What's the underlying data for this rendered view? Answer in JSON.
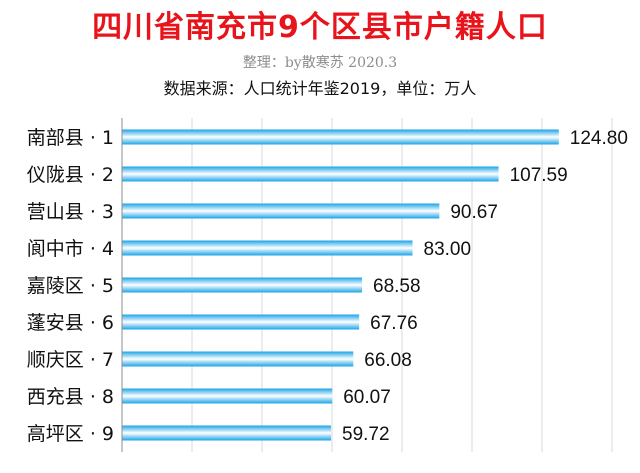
{
  "header": {
    "title": "四川省南充市9个区县市户籍人口",
    "credit": "整理：by散寒苏 2020.3",
    "source": "数据来源：人口统计年鉴2019，单位：万人"
  },
  "colors": {
    "title": "#e8141b",
    "bar_edge": "#1aa3e8",
    "bar_center": "#ffffff",
    "grid": "#d9d9d9",
    "axis": "#8c8c8c"
  },
  "chart_data": {
    "type": "bar",
    "orientation": "horizontal",
    "categories": [
      "南部县 · 1",
      "仪陇县 · 2",
      "营山县 · 3",
      "阆中市 · 4",
      "嘉陵区 · 5",
      "蓬安县 · 6",
      "顺庆区 · 7",
      "西充县 · 8",
      "高坪区 · 9"
    ],
    "values": [
      124.8,
      107.59,
      90.67,
      83.0,
      68.58,
      67.76,
      66.08,
      60.07,
      59.72
    ],
    "value_labels": [
      "124.80",
      "107.59",
      "90.67",
      "83.00",
      "68.58",
      "67.76",
      "66.08",
      "60.07",
      "59.72"
    ],
    "xlim": [
      0,
      140
    ],
    "grid": true,
    "legend": "none"
  }
}
